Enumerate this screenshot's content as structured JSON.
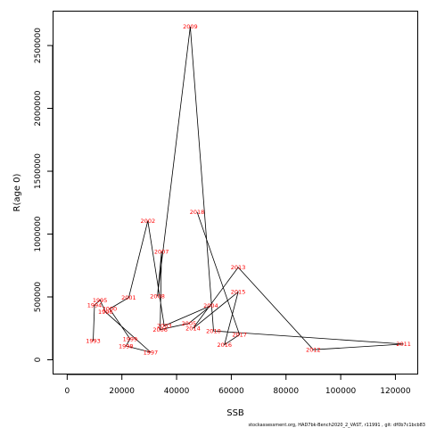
{
  "chart_data": {
    "type": "line",
    "xlabel": "SSB",
    "ylabel": "R(age 0)",
    "xlim": [
      -5000,
      128000
    ],
    "ylim": [
      -110000,
      2770000
    ],
    "xticks": [
      0,
      20000,
      40000,
      60000,
      80000,
      100000,
      120000
    ],
    "yticks": [
      0,
      500000,
      1000000,
      1500000,
      2000000,
      2500000
    ],
    "grid": false,
    "line_color": "#000000",
    "label_color": "#ff0000",
    "footnote": "stockassessment.org, HAD7bk-Bench2020_2_VAST, r11991 , git: df0b7c1bcb83",
    "points": [
      {
        "year": "1993",
        "x": 9500,
        "y": 150000
      },
      {
        "year": "1994",
        "x": 10000,
        "y": 435000
      },
      {
        "year": "1995",
        "x": 12000,
        "y": 475000
      },
      {
        "year": "1996",
        "x": 14000,
        "y": 380000
      },
      {
        "year": "1997",
        "x": 30500,
        "y": 60000
      },
      {
        "year": "1998",
        "x": 21500,
        "y": 110000
      },
      {
        "year": "1999",
        "x": 23000,
        "y": 165000
      },
      {
        "year": "2000",
        "x": 15500,
        "y": 405000
      },
      {
        "year": "2001",
        "x": 22500,
        "y": 495000
      },
      {
        "year": "2002",
        "x": 29500,
        "y": 1105000
      },
      {
        "year": "2003",
        "x": 35500,
        "y": 270000
      },
      {
        "year": "2004",
        "x": 52500,
        "y": 430000
      },
      {
        "year": "2005",
        "x": 44500,
        "y": 290000
      },
      {
        "year": "2006",
        "x": 34000,
        "y": 240000
      },
      {
        "year": "2007",
        "x": 34500,
        "y": 860000
      },
      {
        "year": "2008",
        "x": 33000,
        "y": 505000
      },
      {
        "year": "2009",
        "x": 45000,
        "y": 2650000
      },
      {
        "year": "2010",
        "x": 53500,
        "y": 230000
      },
      {
        "year": "2011",
        "x": 123000,
        "y": 125000
      },
      {
        "year": "2012",
        "x": 90000,
        "y": 80000
      },
      {
        "year": "2013",
        "x": 62500,
        "y": 735000
      },
      {
        "year": "2014",
        "x": 46000,
        "y": 250000
      },
      {
        "year": "2015",
        "x": 62500,
        "y": 540000
      },
      {
        "year": "2016",
        "x": 57500,
        "y": 120000
      },
      {
        "year": "2017",
        "x": 63000,
        "y": 200000
      },
      {
        "year": "2018",
        "x": 47500,
        "y": 1175000
      }
    ]
  }
}
